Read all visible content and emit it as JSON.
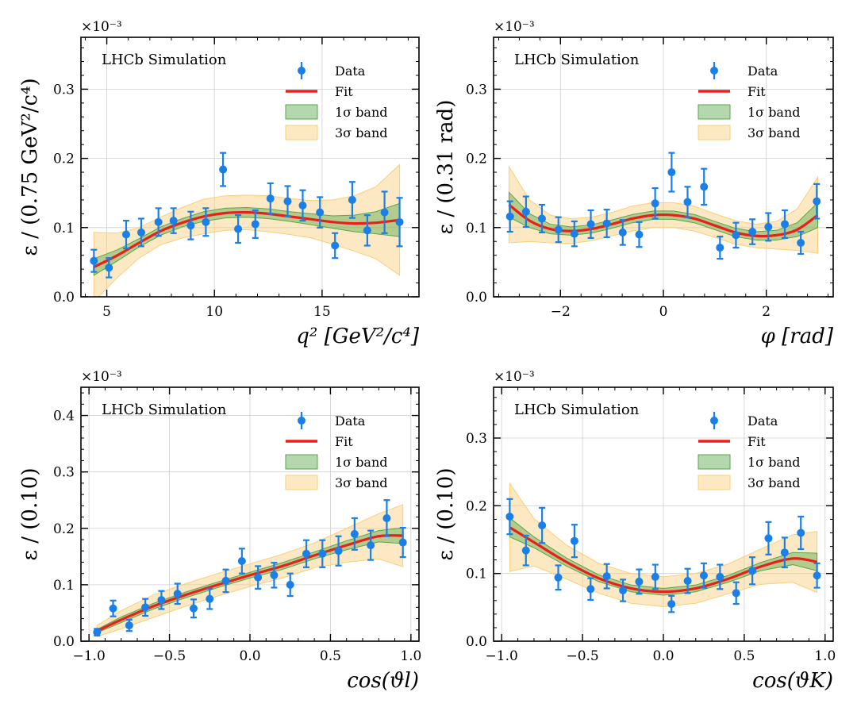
{
  "colors": {
    "data": "#1a7fe6",
    "fit": "#e8201b",
    "band1": "#5aa64a",
    "band3": "#f8cf7a",
    "grid": "#cfcfcf"
  },
  "chart_data": [
    {
      "type": "scatter",
      "title": "",
      "watermark": "LHCb Simulation",
      "sci_label": "×10⁻³",
      "ylabel": "ε / (0.75 GeV²/c⁴)",
      "xlabel": "q² [GeV²/c⁴]",
      "xlim": [
        3.8,
        19.5
      ],
      "ylim": [
        0,
        0.375
      ],
      "xticks": [
        5,
        10,
        15
      ],
      "xtick_labels": [
        "5",
        "10",
        "15"
      ],
      "yticks": [
        0.0,
        0.1,
        0.2,
        0.3
      ],
      "ytick_labels": [
        "0.0",
        "0.1",
        "0.2",
        "0.3"
      ],
      "legend": [
        "Data",
        "Fit",
        "1σ band",
        "3σ band"
      ],
      "data_points": {
        "x": [
          4.4,
          5.1,
          5.9,
          6.6,
          7.4,
          8.1,
          8.9,
          9.6,
          10.4,
          11.1,
          11.9,
          12.6,
          13.4,
          14.1,
          14.9,
          15.6,
          16.4,
          17.1,
          17.9,
          18.6
        ],
        "y": [
          0.052,
          0.042,
          0.09,
          0.093,
          0.108,
          0.11,
          0.103,
          0.108,
          0.184,
          0.098,
          0.105,
          0.142,
          0.138,
          0.132,
          0.122,
          0.074,
          0.14,
          0.096,
          0.122,
          0.108
        ],
        "err": [
          0.016,
          0.014,
          0.02,
          0.02,
          0.02,
          0.018,
          0.02,
          0.02,
          0.024,
          0.02,
          0.02,
          0.022,
          0.022,
          0.022,
          0.022,
          0.018,
          0.026,
          0.022,
          0.03,
          0.035
        ]
      },
      "fit": {
        "x": [
          4.4,
          5.5,
          6.5,
          7.5,
          8.5,
          9.5,
          10.5,
          11.5,
          12.5,
          13.5,
          14.5,
          15.5,
          16.5,
          17.5,
          18.6
        ],
        "y": [
          0.043,
          0.06,
          0.078,
          0.095,
          0.107,
          0.116,
          0.121,
          0.122,
          0.12,
          0.116,
          0.112,
          0.108,
          0.106,
          0.107,
          0.111
        ],
        "band1": [
          0.012,
          0.008,
          0.006,
          0.006,
          0.006,
          0.007,
          0.007,
          0.007,
          0.007,
          0.007,
          0.008,
          0.009,
          0.012,
          0.016,
          0.024
        ],
        "band3": [
          0.05,
          0.032,
          0.022,
          0.02,
          0.022,
          0.025,
          0.025,
          0.025,
          0.026,
          0.026,
          0.027,
          0.032,
          0.04,
          0.052,
          0.08
        ]
      }
    },
    {
      "type": "scatter",
      "title": "",
      "watermark": "LHCb Simulation",
      "sci_label": "×10⁻³",
      "ylabel": "ε / (0.31 rad)",
      "xlabel": "φ [rad]",
      "xlim": [
        -3.3,
        3.3
      ],
      "ylim": [
        0,
        0.375
      ],
      "xticks": [
        -2,
        0,
        2
      ],
      "xtick_labels": [
        "−2",
        "0",
        "2"
      ],
      "yticks": [
        0.0,
        0.1,
        0.2,
        0.3
      ],
      "ytick_labels": [
        "0.0",
        "0.1",
        "0.2",
        "0.3"
      ],
      "legend": [
        "Data",
        "Fit",
        "1σ band",
        "3σ band"
      ],
      "data_points": {
        "x": [
          -2.98,
          -2.67,
          -2.36,
          -2.04,
          -1.73,
          -1.41,
          -1.1,
          -0.79,
          -0.47,
          -0.16,
          0.16,
          0.47,
          0.79,
          1.1,
          1.41,
          1.73,
          2.04,
          2.36,
          2.67,
          2.98
        ],
        "y": [
          0.116,
          0.123,
          0.113,
          0.097,
          0.091,
          0.105,
          0.106,
          0.093,
          0.09,
          0.135,
          0.18,
          0.137,
          0.159,
          0.071,
          0.089,
          0.094,
          0.101,
          0.105,
          0.078,
          0.138
        ],
        "err": [
          0.022,
          0.022,
          0.02,
          0.018,
          0.018,
          0.02,
          0.02,
          0.018,
          0.018,
          0.022,
          0.028,
          0.022,
          0.026,
          0.016,
          0.018,
          0.018,
          0.02,
          0.02,
          0.016,
          0.025
        ]
      },
      "fit": {
        "x": [
          -3.0,
          -2.6,
          -2.2,
          -1.8,
          -1.4,
          -1.0,
          -0.6,
          -0.2,
          0.2,
          0.6,
          1.0,
          1.4,
          1.8,
          2.2,
          2.6,
          3.0
        ],
        "y": [
          0.133,
          0.11,
          0.098,
          0.095,
          0.098,
          0.105,
          0.113,
          0.118,
          0.118,
          0.113,
          0.103,
          0.093,
          0.088,
          0.089,
          0.097,
          0.118
        ],
        "band1": [
          0.018,
          0.01,
          0.007,
          0.006,
          0.006,
          0.006,
          0.006,
          0.006,
          0.006,
          0.006,
          0.006,
          0.006,
          0.006,
          0.007,
          0.01,
          0.018
        ],
        "band3": [
          0.055,
          0.03,
          0.02,
          0.018,
          0.017,
          0.017,
          0.018,
          0.018,
          0.018,
          0.018,
          0.017,
          0.017,
          0.017,
          0.02,
          0.03,
          0.055
        ]
      }
    },
    {
      "type": "scatter",
      "title": "",
      "watermark": "LHCb Simulation",
      "sci_label": "×10⁻³",
      "ylabel": "ε / (0.10)",
      "xlabel": "cos(ϑl)",
      "xlim": [
        -1.05,
        1.05
      ],
      "ylim": [
        0,
        0.45
      ],
      "xticks": [
        -1.0,
        -0.5,
        0.0,
        0.5,
        1.0
      ],
      "xtick_labels": [
        "−1.0",
        "−0.5",
        "0.0",
        "0.5",
        "1.0"
      ],
      "yticks": [
        0.0,
        0.1,
        0.2,
        0.3,
        0.4
      ],
      "ytick_labels": [
        "0.0",
        "0.1",
        "0.2",
        "0.3",
        "0.4"
      ],
      "legend": [
        "Data",
        "Fit",
        "1σ band",
        "3σ band"
      ],
      "data_points": {
        "x": [
          -0.95,
          -0.85,
          -0.75,
          -0.65,
          -0.55,
          -0.45,
          -0.35,
          -0.25,
          -0.15,
          -0.05,
          0.05,
          0.15,
          0.25,
          0.35,
          0.45,
          0.55,
          0.65,
          0.75,
          0.85,
          0.95
        ],
        "y": [
          0.016,
          0.058,
          0.028,
          0.06,
          0.073,
          0.084,
          0.058,
          0.075,
          0.107,
          0.142,
          0.113,
          0.117,
          0.1,
          0.155,
          0.155,
          0.16,
          0.19,
          0.17,
          0.218,
          0.175
        ],
        "err": [
          0.006,
          0.014,
          0.01,
          0.015,
          0.016,
          0.018,
          0.016,
          0.018,
          0.02,
          0.022,
          0.02,
          0.022,
          0.02,
          0.024,
          0.024,
          0.026,
          0.028,
          0.026,
          0.032,
          0.026
        ]
      },
      "fit": {
        "x": [
          -0.95,
          -0.8,
          -0.6,
          -0.4,
          -0.2,
          0.0,
          0.2,
          0.4,
          0.6,
          0.8,
          0.95
        ],
        "y": [
          0.018,
          0.038,
          0.062,
          0.082,
          0.1,
          0.117,
          0.133,
          0.152,
          0.17,
          0.186,
          0.187
        ],
        "band1": [
          0.003,
          0.005,
          0.005,
          0.005,
          0.005,
          0.005,
          0.006,
          0.006,
          0.008,
          0.01,
          0.014
        ],
        "band3": [
          0.01,
          0.016,
          0.02,
          0.02,
          0.02,
          0.02,
          0.021,
          0.022,
          0.03,
          0.04,
          0.055
        ]
      }
    },
    {
      "type": "scatter",
      "title": "",
      "watermark": "LHCb Simulation",
      "sci_label": "×10⁻³",
      "ylabel": "ε / (0.10)",
      "xlabel": "cos(ϑK)",
      "xlim": [
        -1.05,
        1.05
      ],
      "ylim": [
        0,
        0.375
      ],
      "xticks": [
        -1.0,
        -0.5,
        0.0,
        0.5,
        1.0
      ],
      "xtick_labels": [
        "−1.0",
        "−0.5",
        "0.0",
        "0.5",
        "1.0"
      ],
      "yticks": [
        0.0,
        0.1,
        0.2,
        0.3
      ],
      "ytick_labels": [
        "0.0",
        "0.1",
        "0.2",
        "0.3"
      ],
      "legend": [
        "Data",
        "Fit",
        "1σ band",
        "3σ band"
      ],
      "data_points": {
        "x": [
          -0.95,
          -0.85,
          -0.75,
          -0.65,
          -0.55,
          -0.45,
          -0.35,
          -0.25,
          -0.15,
          -0.05,
          0.05,
          0.15,
          0.25,
          0.35,
          0.45,
          0.55,
          0.65,
          0.75,
          0.85,
          0.95
        ],
        "y": [
          0.184,
          0.134,
          0.171,
          0.094,
          0.148,
          0.077,
          0.096,
          0.075,
          0.088,
          0.095,
          0.055,
          0.089,
          0.097,
          0.095,
          0.071,
          0.104,
          0.152,
          0.131,
          0.16,
          0.097
        ],
        "err": [
          0.026,
          0.022,
          0.026,
          0.018,
          0.024,
          0.016,
          0.018,
          0.016,
          0.018,
          0.018,
          0.012,
          0.018,
          0.018,
          0.018,
          0.016,
          0.02,
          0.024,
          0.022,
          0.024,
          0.018
        ]
      },
      "fit": {
        "x": [
          -0.95,
          -0.8,
          -0.6,
          -0.4,
          -0.2,
          0.0,
          0.2,
          0.4,
          0.6,
          0.8,
          0.95
        ],
        "y": [
          0.168,
          0.146,
          0.117,
          0.093,
          0.078,
          0.073,
          0.078,
          0.092,
          0.11,
          0.122,
          0.117
        ],
        "band1": [
          0.014,
          0.008,
          0.006,
          0.005,
          0.005,
          0.005,
          0.005,
          0.005,
          0.006,
          0.009,
          0.013
        ],
        "band3": [
          0.065,
          0.035,
          0.025,
          0.022,
          0.022,
          0.022,
          0.022,
          0.022,
          0.026,
          0.035,
          0.045
        ]
      }
    }
  ]
}
